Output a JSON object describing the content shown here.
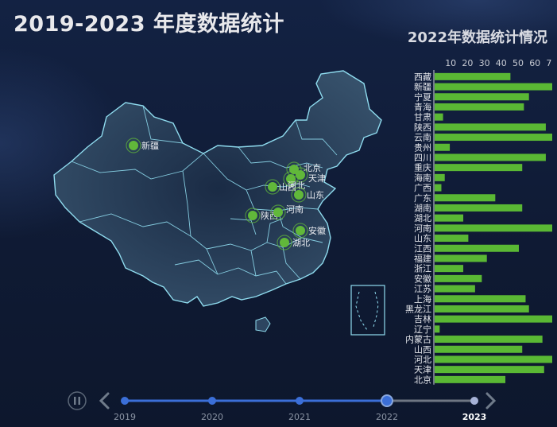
{
  "page": {
    "title": "2019-2023 年度数据统计"
  },
  "chart_data": {
    "type": "bar",
    "orientation": "horizontal",
    "title": "2022年数据统计情况",
    "categories": [
      "西藏",
      "新疆",
      "宁夏",
      "青海",
      "甘肃",
      "陕西",
      "云南",
      "贵州",
      "四川",
      "重庆",
      "海南",
      "广西",
      "广东",
      "湖南",
      "湖北",
      "河南",
      "山东",
      "江西",
      "福建",
      "浙江",
      "安徽",
      "江苏",
      "上海",
      "黑龙江",
      "吉林",
      "辽宁",
      "内蒙古",
      "山西",
      "河北",
      "天津",
      "北京"
    ],
    "values": [
      45,
      70,
      56,
      53,
      5,
      66,
      81,
      9,
      66,
      52,
      6,
      4,
      36,
      52,
      17,
      77,
      20,
      50,
      31,
      17,
      28,
      24,
      54,
      56,
      71,
      3,
      64,
      52,
      71,
      65,
      42
    ],
    "xlim": [
      0,
      80
    ],
    "xticks": [
      "10",
      "20",
      "30",
      "40",
      "50",
      "60",
      "70",
      "80"
    ],
    "bar_color": "#5ab834",
    "grid": false
  },
  "map": {
    "scatter_points": [
      {
        "name": "新疆"
      },
      {
        "name": "北京"
      },
      {
        "name": "天津"
      },
      {
        "name": "山西"
      },
      {
        "name": "河北"
      },
      {
        "name": "山东"
      },
      {
        "name": "陕西"
      },
      {
        "name": "河南"
      },
      {
        "name": "安徽"
      },
      {
        "name": "湖北"
      }
    ],
    "point_color": "#61b83a",
    "land_color": "#2d4560",
    "border_color": "#8fdcef"
  },
  "timeline": {
    "years": [
      "2019",
      "2020",
      "2021",
      "2022",
      "2023"
    ],
    "current_index": 3,
    "play_icon": "pause-icon",
    "prev_icon": "chevron-left-icon",
    "next_icon": "chevron-right-icon"
  }
}
